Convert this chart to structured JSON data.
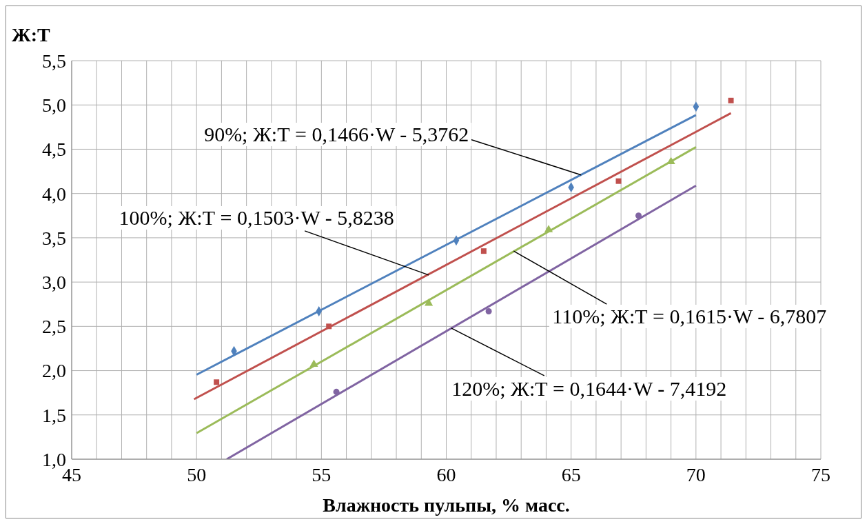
{
  "chart_data": {
    "type": "scatter",
    "ylabel": "Ж:Т",
    "xlabel": "Влажность пульпы, % масс.",
    "xlim": [
      45,
      75
    ],
    "ylim": [
      1,
      5.5
    ],
    "xticks": [
      45,
      {
        "value": 46,
        "label": null
      },
      {
        "value": 47,
        "label": null
      },
      {
        "value": 48,
        "label": null
      },
      {
        "value": 49,
        "label": null
      },
      50,
      {
        "value": 51,
        "label": null
      },
      {
        "value": 52,
        "label": null
      },
      {
        "value": 53,
        "label": null
      },
      {
        "value": 54,
        "label": null
      },
      55,
      {
        "value": 56,
        "label": null
      },
      {
        "value": 57,
        "label": null
      },
      {
        "value": 58,
        "label": null
      },
      {
        "value": 59,
        "label": null
      },
      60,
      {
        "value": 61,
        "label": null
      },
      {
        "value": 62,
        "label": null
      },
      {
        "value": 63,
        "label": null
      },
      {
        "value": 64,
        "label": null
      },
      65,
      {
        "value": 66,
        "label": null
      },
      {
        "value": 67,
        "label": null
      },
      {
        "value": 68,
        "label": null
      },
      {
        "value": 69,
        "label": null
      },
      70,
      {
        "value": 71,
        "label": null
      },
      {
        "value": 72,
        "label": null
      },
      {
        "value": 73,
        "label": null
      },
      {
        "value": 74,
        "label": null
      },
      75
    ],
    "yticks": [
      {
        "value": 1,
        "label": "1,0"
      },
      {
        "value": 1.5,
        "label": "1,5"
      },
      {
        "value": 2,
        "label": "2,0"
      },
      {
        "value": 2.5,
        "label": "2,5"
      },
      {
        "value": 3,
        "label": "3,0"
      },
      {
        "value": 3.5,
        "label": "3,5"
      },
      {
        "value": 4,
        "label": "4,0"
      },
      {
        "value": 4.5,
        "label": "4,5"
      },
      {
        "value": 5,
        "label": "5,0"
      },
      {
        "value": 5.5,
        "label": "5,5"
      }
    ],
    "grid": true,
    "series": [
      {
        "marker": "diamond",
        "color": "#4f81bd",
        "x": [
          51.5,
          54.9,
          60.4,
          65.0,
          70.0
        ],
        "values": [
          2.22,
          2.67,
          3.47,
          4.07,
          4.98
        ]
      },
      {
        "marker": "square",
        "color": "#c0504d",
        "x": [
          50.8,
          55.3,
          61.5,
          66.9,
          71.4
        ],
        "values": [
          1.87,
          2.5,
          3.35,
          4.14,
          5.05
        ]
      },
      {
        "marker": "triangle",
        "color": "#9bbb59",
        "x": [
          54.7,
          59.3,
          64.1,
          69.0
        ],
        "values": [
          2.07,
          2.76,
          3.59,
          4.36
        ]
      },
      {
        "marker": "circle",
        "color": "#8064a2",
        "x": [
          55.6,
          61.7,
          67.7
        ],
        "values": [
          1.76,
          2.67,
          3.75
        ]
      },
      {
        "type": "line",
        "marker": "none",
        "color": "#4f81bd",
        "x": [
          50,
          70
        ],
        "values": [
          1.954,
          4.886
        ]
      },
      {
        "type": "line",
        "marker": "none",
        "color": "#c0504d",
        "x": [
          49.9,
          71.4
        ],
        "values": [
          1.677,
          4.907
        ]
      },
      {
        "type": "line",
        "marker": "none",
        "color": "#9bbb59",
        "x": [
          50,
          70
        ],
        "values": [
          1.294,
          4.524
        ]
      },
      {
        "type": "line",
        "marker": "none",
        "color": "#8064a2",
        "x": [
          51.21,
          70
        ],
        "values": [
          1.0,
          4.089
        ]
      }
    ],
    "annotations": [
      {
        "text": "90%; Ж:Т = 0,1466·W - 5,3762",
        "x": 65.4,
        "y": 4.21
      },
      {
        "text": "100%; Ж:Т = 0,1503·W - 5,8238",
        "x": 59.3,
        "y": 3.08
      },
      {
        "text": "110%; Ж:Т = 0,1615·W - 6,7807",
        "x": 62.7,
        "y": 3.35
      },
      {
        "text": "120%; Ж:Т = 0,1644·W - 7,4192",
        "x": 60.2,
        "y": 2.48
      }
    ]
  }
}
